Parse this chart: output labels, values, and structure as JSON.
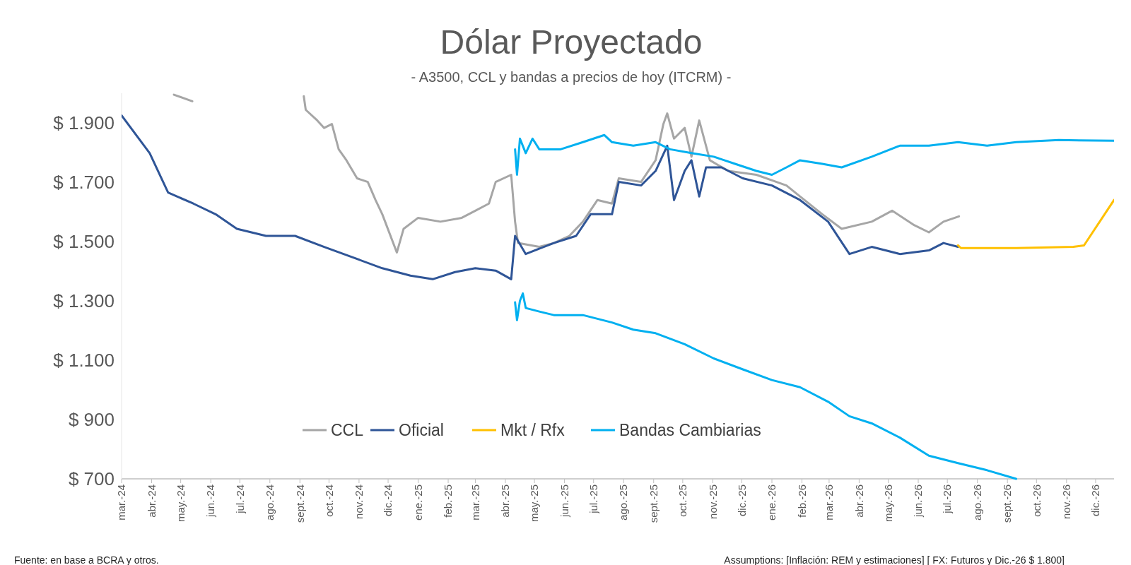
{
  "chart_data": {
    "type": "line",
    "title": "Dólar Proyectado",
    "subtitle": "- A3500, CCL y bandas a precios de hoy (ITCRM) -",
    "annotations": [
      "Fuente: en base a BCRA y otros.",
      "Assumptions: [Inflación: REM y estimaciones] [ FX: Futuros y Dic.-26 $ 1.800]"
    ],
    "xlim": [
      "2024-03-01",
      "2026-12-20"
    ],
    "xticks": [
      {
        "value": "2024-03-01",
        "label": "mar.-24"
      },
      {
        "value": "2024-04-01",
        "label": "abr.-24"
      },
      {
        "value": "2024-05-01",
        "label": "may.-24"
      },
      {
        "value": "2024-06-01",
        "label": "jun.-24"
      },
      {
        "value": "2024-07-01",
        "label": "jul.-24"
      },
      {
        "value": "2024-08-01",
        "label": "ago.-24"
      },
      {
        "value": "2024-09-01",
        "label": "sept.-24"
      },
      {
        "value": "2024-10-01",
        "label": "oct.-24"
      },
      {
        "value": "2024-11-01",
        "label": "nov.-24"
      },
      {
        "value": "2024-12-01",
        "label": "dic.-24"
      },
      {
        "value": "2025-01-01",
        "label": "ene.-25"
      },
      {
        "value": "2025-02-01",
        "label": "feb.-25"
      },
      {
        "value": "2025-03-01",
        "label": "mar.-25"
      },
      {
        "value": "2025-04-01",
        "label": "abr.-25"
      },
      {
        "value": "2025-05-01",
        "label": "may.-25"
      },
      {
        "value": "2025-06-01",
        "label": "jun.-25"
      },
      {
        "value": "2025-07-01",
        "label": "jul.-25"
      },
      {
        "value": "2025-08-01",
        "label": "ago.-25"
      },
      {
        "value": "2025-09-01",
        "label": "sept.-25"
      },
      {
        "value": "2025-10-01",
        "label": "oct.-25"
      },
      {
        "value": "2025-11-01",
        "label": "nov.-25"
      },
      {
        "value": "2025-12-01",
        "label": "dic.-25"
      },
      {
        "value": "2026-01-01",
        "label": "ene.-26"
      },
      {
        "value": "2026-02-01",
        "label": "feb.-26"
      },
      {
        "value": "2026-03-01",
        "label": "mar.-26"
      },
      {
        "value": "2026-04-01",
        "label": "abr.-26"
      },
      {
        "value": "2026-05-01",
        "label": "may.-26"
      },
      {
        "value": "2026-06-01",
        "label": "jun.-26"
      },
      {
        "value": "2026-07-01",
        "label": "jul.-26"
      },
      {
        "value": "2026-08-01",
        "label": "ago.-26"
      },
      {
        "value": "2026-09-01",
        "label": "sept.-26"
      },
      {
        "value": "2026-10-01",
        "label": "oct.-26"
      },
      {
        "value": "2026-11-01",
        "label": "nov.-26"
      },
      {
        "value": "2026-12-01",
        "label": "dic.-26"
      }
    ],
    "ylim": [
      700,
      2000
    ],
    "yticks": [
      {
        "value": 700,
        "label": "$ 700"
      },
      {
        "value": 900,
        "label": "$ 900"
      },
      {
        "value": 1100,
        "label": "$ 1.100"
      },
      {
        "value": 1300,
        "label": "$ 1.300"
      },
      {
        "value": 1500,
        "label": "$ 1.500"
      },
      {
        "value": 1700,
        "label": "$ 1.700"
      },
      {
        "value": 1900,
        "label": "$ 1.900"
      }
    ],
    "grid": false,
    "legend": "bottom",
    "line_style": "solid",
    "marker": "none",
    "series": [
      {
        "name": "CCL",
        "color": "#a6a6a6",
        "x": [
          "2024-04-24",
          "2024-05-13",
          "2024-06-01",
          "2024-09-05",
          "2024-09-07",
          "2024-09-19",
          "2024-09-26",
          "2024-10-04",
          "2024-10-11",
          "2024-10-19",
          "2024-10-30",
          "2024-11-10",
          "2024-11-18",
          "2024-11-25",
          "2024-12-10",
          "2024-12-17",
          "2025-01-01",
          "2025-01-24",
          "2025-02-15",
          "2025-03-01",
          "2025-03-15",
          "2025-03-22",
          "2025-04-07",
          "2025-04-11",
          "2025-04-14",
          "2025-05-06",
          "2025-05-21",
          "2025-06-06",
          "2025-06-20",
          "2025-07-05",
          "2025-07-20",
          "2025-07-27",
          "2025-08-19",
          "2025-09-03",
          "2025-09-11",
          "2025-09-15",
          "2025-09-22",
          "2025-10-03",
          "2025-10-10",
          "2025-10-18",
          "2025-10-29",
          "2025-11-17",
          "2025-12-16",
          "2026-01-16",
          "2026-01-30",
          "2026-02-22",
          "2026-03-14",
          "2026-04-14",
          "2026-05-05",
          "2026-05-28",
          "2026-06-12",
          "2026-06-27",
          "2026-07-13"
        ],
        "values": [
          1995,
          1973,
          null,
          1990,
          1944,
          1908,
          1883,
          1896,
          1811,
          1774,
          1713,
          1701,
          1640,
          1592,
          1463,
          1543,
          1580,
          1567,
          1580,
          1604,
          1628,
          1701,
          1725,
          1567,
          1495,
          1482,
          1495,
          1519,
          1567,
          1640,
          1628,
          1713,
          1701,
          1774,
          1896,
          1932,
          1847,
          1883,
          1786,
          1908,
          1774,
          1738,
          1725,
          1689,
          1652,
          1592,
          1543,
          1567,
          1604,
          1555,
          1531,
          1567,
          1585
        ]
      },
      {
        "name": "Oficial",
        "color": "#2f5597",
        "x": [
          "2024-03-01",
          "2024-03-30",
          "2024-04-18",
          "2024-05-14",
          "2024-06-06",
          "2024-06-28",
          "2024-07-28",
          "2024-08-27",
          "2024-09-26",
          "2024-10-26",
          "2024-11-25",
          "2024-12-24",
          "2025-01-16",
          "2025-02-08",
          "2025-03-01",
          "2025-03-22",
          "2025-04-07",
          "2025-04-11",
          "2025-04-22",
          "2025-05-21",
          "2025-06-13",
          "2025-06-28",
          "2025-07-20",
          "2025-07-27",
          "2025-08-19",
          "2025-09-03",
          "2025-09-15",
          "2025-09-22",
          "2025-10-03",
          "2025-10-10",
          "2025-10-18",
          "2025-10-25",
          "2025-11-10",
          "2025-12-02",
          "2026-01-01",
          "2026-01-30",
          "2026-02-28",
          "2026-03-22",
          "2026-04-14",
          "2026-05-13",
          "2026-06-12",
          "2026-06-27",
          "2026-07-12"
        ],
        "values": [
          1925,
          1798,
          1665,
          1628,
          1592,
          1543,
          1519,
          1519,
          1482,
          1446,
          1410,
          1385,
          1373,
          1397,
          1410,
          1402,
          1373,
          1519,
          1458,
          1495,
          1519,
          1592,
          1592,
          1701,
          1689,
          1738,
          1823,
          1640,
          1738,
          1774,
          1652,
          1750,
          1750,
          1713,
          1689,
          1640,
          1567,
          1458,
          1482,
          1458,
          1470,
          1495,
          1482
        ]
      },
      {
        "name": "Mkt / Rfx",
        "color": "#ffc000",
        "x": [
          "2026-07-12",
          "2026-07-15",
          "2026-09-10",
          "2026-11-08",
          "2026-11-19",
          "2026-12-20"
        ],
        "values": [
          1487,
          1478,
          1478,
          1482,
          1487,
          1640
        ]
      },
      {
        "name": "Bandas Cambiarias",
        "color": "#00b0f0",
        "x": [
          "2025-04-11",
          "2025-04-13",
          "2025-04-16",
          "2025-04-22",
          "2025-04-29",
          "2025-05-06",
          "2025-05-28",
          "2025-06-20",
          "2025-07-12",
          "2025-07-20",
          "2025-08-11",
          "2025-09-03",
          "2025-09-18",
          "2025-10-10",
          "2025-11-02",
          "2025-11-24",
          "2025-12-16",
          "2026-01-01",
          "2026-01-16",
          "2026-01-30",
          "2026-02-22",
          "2026-03-14",
          "2026-04-14",
          "2026-05-13",
          "2026-06-12",
          "2026-07-12",
          "2026-08-11",
          "2026-09-10",
          "2026-10-24",
          "2026-12-20"
        ],
        "values": [
          1811,
          1725,
          1847,
          1798,
          1847,
          1811,
          1811,
          1835,
          1859,
          1835,
          1823,
          1835,
          1811,
          1798,
          1786,
          1762,
          1738,
          1725,
          1750,
          1774,
          1762,
          1750,
          1786,
          1823,
          1823,
          1835,
          1823,
          1835,
          1842,
          1840
        ]
      },
      {
        "color": "#00b0f0",
        "x": [
          "2025-04-11",
          "2025-04-13",
          "2025-04-16",
          "2025-04-19",
          "2025-04-22",
          "2025-05-06",
          "2025-05-21",
          "2025-06-20",
          "2025-07-20",
          "2025-08-11",
          "2025-09-03",
          "2025-10-03",
          "2025-11-02",
          "2025-12-02",
          "2026-01-01",
          "2026-01-30",
          "2026-02-28",
          "2026-03-22",
          "2026-04-14",
          "2026-05-13",
          "2026-06-12",
          "2026-07-12",
          "2026-08-11",
          "2026-09-10"
        ],
        "values": [
          1295,
          1235,
          1300,
          1325,
          1276,
          1264,
          1252,
          1252,
          1227,
          1203,
          1191,
          1154,
          1106,
          1069,
          1033,
          1009,
          960,
          911,
          887,
          839,
          778,
          753,
          729,
          700
        ]
      }
    ]
  }
}
